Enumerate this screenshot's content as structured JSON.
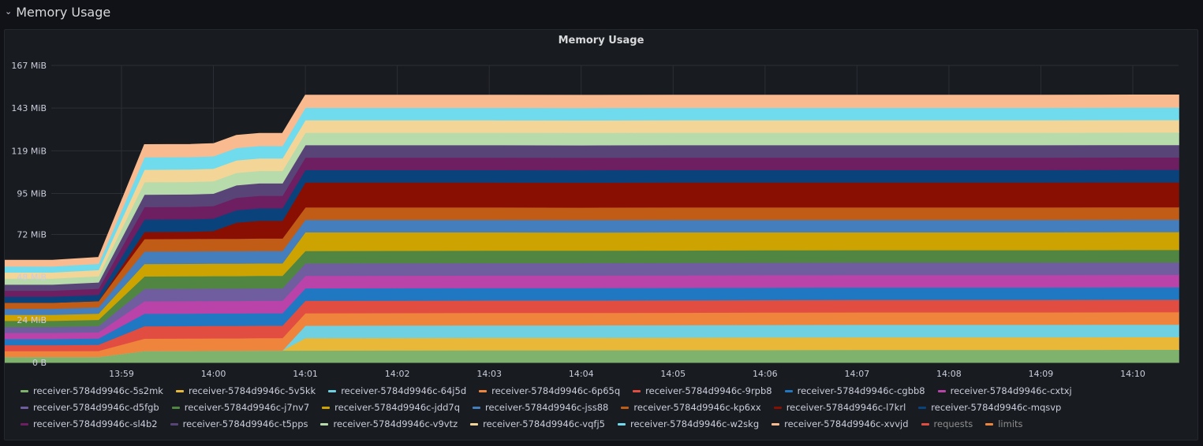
{
  "row": {
    "title": "Memory Usage",
    "chevron_icon": "chevron-down-icon"
  },
  "panel": {
    "title": "Memory Usage"
  },
  "chart_data": {
    "type": "area",
    "stacked": true,
    "title": "Memory Usage",
    "x": [
      "13:57:30",
      "13:58:15",
      "13:58:45",
      "13:59:15",
      "13:59:45",
      "14:00:00",
      "14:00:15",
      "14:00:30",
      "14:00:45",
      "14:01:00",
      "14:02:00",
      "14:03:00",
      "14:04:00",
      "14:05:00",
      "14:06:00",
      "14:07:00",
      "14:08:00",
      "14:09:00",
      "14:10:00",
      "14:10:30"
    ],
    "x_ticks": [
      "13:59",
      "14:00",
      "14:01",
      "14:02",
      "14:03",
      "14:04",
      "14:05",
      "14:06",
      "14:07",
      "14:08",
      "14:09",
      "14:10"
    ],
    "y_ticks": [
      "0 B",
      "24 MiB",
      "48 MiB",
      "72 MiB",
      "95 MiB",
      "119 MiB",
      "143 MiB",
      "167 MiB"
    ],
    "ylim": [
      0,
      167
    ],
    "y_unit": "MiB",
    "grid": true,
    "legend_position": "bottom",
    "series": [
      {
        "name": "receiver-5784d9946c-5s2mk",
        "color": "#7eb26d",
        "values": [
          3.2,
          3.2,
          3.2,
          6.5,
          6.6,
          6.7,
          6.7,
          6.8,
          6.8,
          6.8,
          6.9,
          7.0,
          7.0,
          7.1,
          7.1,
          7.2,
          7.2,
          7.2,
          7.3,
          7.3
        ]
      },
      {
        "name": "receiver-5784d9946c-5v5kk",
        "color": "#eab839",
        "values": [
          0,
          0,
          0,
          0,
          0,
          0,
          0,
          0,
          0,
          7.0,
          7.0,
          7.0,
          7.0,
          7.0,
          7.1,
          7.1,
          7.1,
          7.1,
          7.1,
          7.1
        ]
      },
      {
        "name": "receiver-5784d9946c-64j5d",
        "color": "#6ed0e0",
        "values": [
          0,
          0,
          0,
          0,
          0,
          0,
          0,
          0,
          0,
          7.0,
          7.0,
          7.0,
          7.0,
          7.0,
          7.0,
          7.0,
          7.0,
          7.0,
          7.0,
          7.0
        ]
      },
      {
        "name": "receiver-5784d9946c-6p65q",
        "color": "#ef843c",
        "values": [
          3.3,
          3.3,
          3.4,
          7.0,
          7.0,
          7.0,
          7.0,
          7.0,
          7.0,
          7.0,
          7.0,
          7.0,
          7.0,
          7.0,
          7.0,
          7.0,
          7.0,
          7.0,
          7.0,
          7.0
        ]
      },
      {
        "name": "receiver-5784d9946c-9rpb8",
        "color": "#e24d42",
        "values": [
          3.4,
          3.4,
          3.5,
          7.0,
          7.0,
          7.0,
          7.0,
          7.0,
          7.0,
          7.0,
          7.0,
          7.0,
          7.0,
          7.0,
          7.0,
          7.0,
          7.0,
          7.0,
          7.0,
          7.0
        ]
      },
      {
        "name": "receiver-5784d9946c-cgbb8",
        "color": "#1f78c1",
        "values": [
          3.4,
          3.4,
          3.5,
          7.0,
          7.0,
          7.0,
          7.0,
          7.0,
          7.0,
          7.0,
          7.0,
          7.0,
          7.0,
          7.0,
          7.0,
          7.0,
          7.0,
          7.0,
          7.0,
          7.0
        ]
      },
      {
        "name": "receiver-5784d9946c-cxtxj",
        "color": "#ba43a9",
        "values": [
          3.4,
          3.4,
          3.5,
          7.0,
          7.0,
          7.0,
          7.0,
          7.0,
          7.0,
          7.0,
          7.0,
          7.0,
          7.0,
          7.0,
          7.0,
          7.0,
          7.0,
          7.0,
          7.0,
          7.0
        ]
      },
      {
        "name": "receiver-5784d9946c-d5fgb",
        "color": "#705da0",
        "values": [
          3.4,
          3.4,
          3.5,
          7.0,
          7.0,
          7.0,
          7.0,
          7.0,
          7.0,
          7.0,
          7.0,
          7.0,
          7.0,
          7.0,
          7.0,
          7.0,
          7.0,
          7.0,
          7.0,
          7.0
        ]
      },
      {
        "name": "receiver-5784d9946c-j7nv7",
        "color": "#508642",
        "values": [
          3.4,
          3.4,
          3.5,
          7.0,
          7.0,
          7.0,
          7.0,
          7.0,
          7.0,
          7.0,
          7.0,
          7.0,
          7.0,
          7.0,
          7.0,
          7.0,
          7.0,
          7.0,
          7.0,
          7.0
        ]
      },
      {
        "name": "receiver-5784d9946c-jdd7q",
        "color": "#cca300",
        "values": [
          3.4,
          3.4,
          3.5,
          7.0,
          7.0,
          7.0,
          7.0,
          7.0,
          7.0,
          10.5,
          10.4,
          10.3,
          10.2,
          10.2,
          10.1,
          10.0,
          10.0,
          10.0,
          10.0,
          10.0
        ]
      },
      {
        "name": "receiver-5784d9946c-jss88",
        "color": "#447ebc",
        "values": [
          3.4,
          3.4,
          3.5,
          7.0,
          7.0,
          7.0,
          7.0,
          7.0,
          7.0,
          7.0,
          7.0,
          7.0,
          7.0,
          7.0,
          7.0,
          7.0,
          7.0,
          7.0,
          7.0,
          7.0
        ]
      },
      {
        "name": "receiver-5784d9946c-kp6xx",
        "color": "#c15c17",
        "values": [
          3.4,
          3.4,
          3.5,
          7.0,
          7.0,
          7.0,
          7.0,
          7.0,
          7.0,
          7.0,
          7.0,
          7.0,
          7.0,
          7.0,
          7.0,
          7.0,
          7.0,
          7.0,
          7.0,
          7.0
        ]
      },
      {
        "name": "receiver-5784d9946c-l7krl",
        "color": "#890f02",
        "values": [
          0,
          0,
          0,
          4.0,
          4.0,
          4.3,
          9.0,
          10.0,
          10.0,
          14.0,
          14.0,
          14.0,
          14.0,
          14.0,
          14.0,
          14.0,
          14.0,
          14.0,
          14.0,
          14.0
        ]
      },
      {
        "name": "receiver-5784d9946c-mqsvp",
        "color": "#0a437c",
        "values": [
          3.4,
          3.4,
          3.5,
          7.0,
          7.0,
          7.0,
          7.0,
          7.0,
          7.0,
          7.0,
          7.0,
          7.0,
          7.0,
          7.0,
          7.0,
          7.0,
          7.0,
          7.0,
          7.0,
          7.0
        ]
      },
      {
        "name": "receiver-5784d9946c-sl4b2",
        "color": "#6d1f62",
        "values": [
          3.4,
          3.4,
          3.5,
          7.0,
          7.0,
          7.0,
          7.0,
          7.0,
          7.0,
          7.0,
          7.0,
          7.0,
          7.0,
          7.0,
          7.0,
          7.0,
          7.0,
          7.0,
          7.0,
          7.0
        ]
      },
      {
        "name": "receiver-5784d9946c-t5pps",
        "color": "#584477",
        "values": [
          3.4,
          3.4,
          3.5,
          7.0,
          7.0,
          7.0,
          7.0,
          7.0,
          7.0,
          7.0,
          7.0,
          7.0,
          7.0,
          7.0,
          7.0,
          7.0,
          7.0,
          7.0,
          7.0,
          7.0
        ]
      },
      {
        "name": "receiver-5784d9946c-v9vtz",
        "color": "#b7dbab",
        "values": [
          3.4,
          3.4,
          3.5,
          7.0,
          7.0,
          7.0,
          7.0,
          7.0,
          7.0,
          7.0,
          7.0,
          7.0,
          7.0,
          7.0,
          7.0,
          7.0,
          7.0,
          7.0,
          7.0,
          7.0
        ]
      },
      {
        "name": "receiver-5784d9946c-vqfj5",
        "color": "#f4d598",
        "values": [
          3.4,
          3.4,
          3.5,
          7.0,
          7.0,
          7.0,
          7.0,
          7.0,
          7.0,
          7.0,
          7.0,
          7.0,
          7.0,
          7.0,
          7.0,
          7.0,
          7.0,
          7.0,
          7.0,
          7.0
        ]
      },
      {
        "name": "receiver-5784d9946c-w2skg",
        "color": "#70dbed",
        "values": [
          3.4,
          3.4,
          3.5,
          7.0,
          7.0,
          7.0,
          7.0,
          7.0,
          7.0,
          7.0,
          7.0,
          7.0,
          7.0,
          7.0,
          7.0,
          7.0,
          7.0,
          7.0,
          7.0,
          7.0
        ]
      },
      {
        "name": "receiver-5784d9946c-xvvjd",
        "color": "#f9ba8f",
        "values": [
          3.4,
          3.4,
          3.5,
          7.0,
          7.0,
          7.0,
          7.0,
          7.0,
          7.0,
          7.0,
          7.0,
          7.0,
          7.0,
          7.0,
          7.0,
          7.0,
          7.0,
          7.0,
          7.0,
          7.0
        ]
      }
    ],
    "extra_legend": [
      {
        "name": "requests",
        "color": "#e24d42"
      },
      {
        "name": "limits",
        "color": "#ef843c"
      }
    ]
  }
}
